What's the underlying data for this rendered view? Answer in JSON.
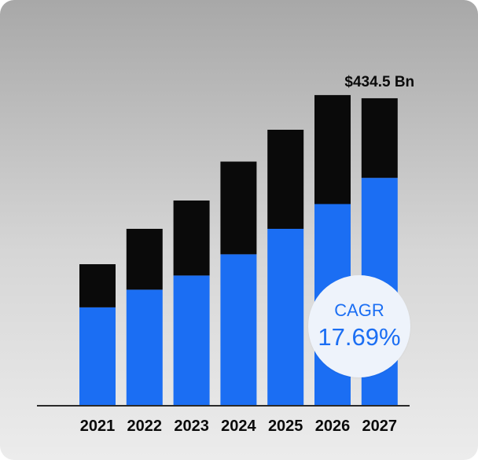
{
  "chart_data": {
    "type": "bar",
    "stacked": true,
    "categories": [
      "2021",
      "2022",
      "2023",
      "2024",
      "2025",
      "2026",
      "2027"
    ],
    "series": [
      {
        "values": [
          139,
          164,
          184,
          214,
          250,
          285,
          322
        ]
      },
      {
        "values": [
          61,
          86,
          106,
          131,
          140,
          154,
          112.5
        ]
      }
    ],
    "totals": [
      200,
      250,
      290,
      345,
      390,
      439,
      434.5
    ],
    "annotations": {
      "last_bar_value": "$434.5 Bn",
      "cagr_label": "CAGR",
      "cagr_value": "17.69%"
    },
    "ylim": [
      0,
      500
    ],
    "colors": {
      "series_blue": "#1b6ef3",
      "series_black": "#0a0a0a"
    },
    "grid": false
  }
}
